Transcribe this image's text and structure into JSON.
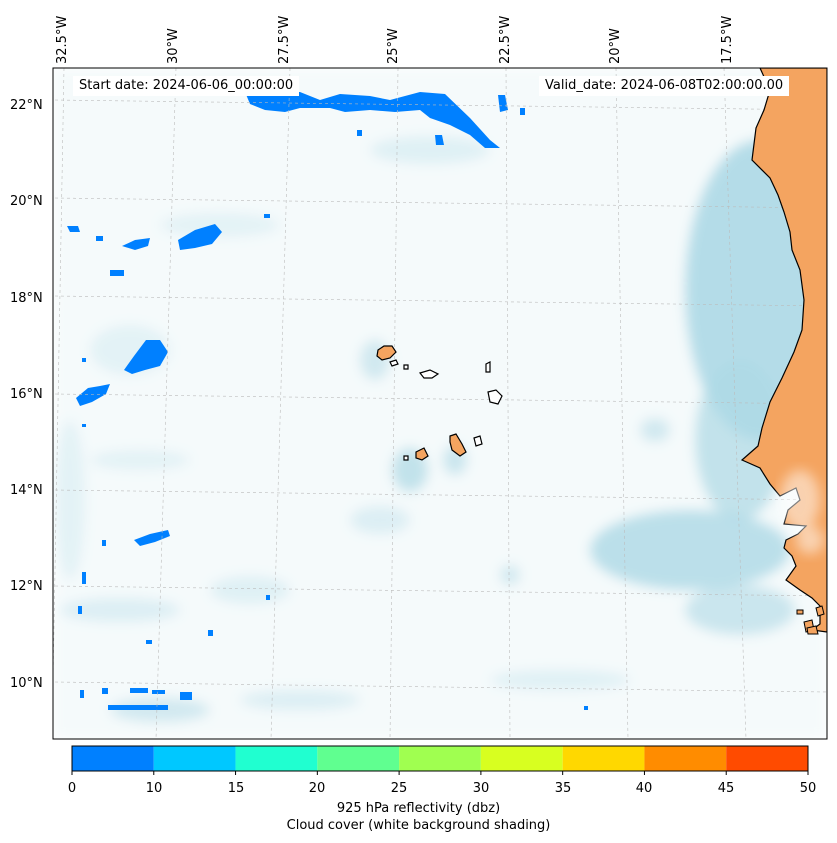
{
  "map": {
    "start_date_text": "Start date: 2024-06-06_00:00:00",
    "valid_date_text": "Valid_date: 2024-06-08T02:00:00.00",
    "lon_labels": [
      "32.5°W",
      "30°W",
      "27.5°W",
      "25°W",
      "22.5°W",
      "20°W",
      "17.5°W"
    ],
    "lat_labels": [
      "22°N",
      "20°N",
      "18°N",
      "16°N",
      "14°N",
      "12°N",
      "10°N"
    ],
    "colors": {
      "land": "#f4a460",
      "cloud": "#add8e6",
      "reflectivity_low": "#0080ff"
    }
  },
  "colorbar": {
    "ticks": [
      "0",
      "5",
      "10",
      "15",
      "20",
      "25",
      "30",
      "35",
      "40",
      "45",
      "50"
    ],
    "colors": [
      "#0080ff",
      "#00c8ff",
      "#20ffd0",
      "#60ff90",
      "#a0ff50",
      "#d8ff20",
      "#ffd800",
      "#ff8c00",
      "#ff4b00"
    ],
    "label_line1": "925 hPa reflectivity (dbz)",
    "label_line2": "Cloud cover (white background shading)"
  }
}
